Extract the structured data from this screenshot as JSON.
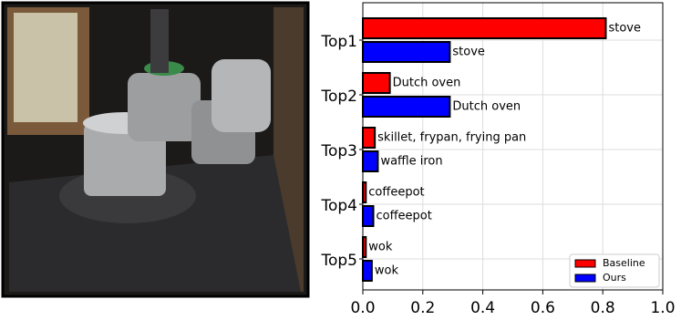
{
  "chart_data": {
    "type": "barh",
    "categories": [
      "Top1",
      "Top2",
      "Top3",
      "Top4",
      "Top5"
    ],
    "series": [
      {
        "name": "Baseline",
        "color": "#ff0000",
        "values": [
          0.81,
          0.09,
          0.04,
          0.01,
          0.01
        ],
        "labels": [
          "stove",
          "Dutch oven",
          "skillet, frypan, frying pan",
          "coffeepot",
          "wok"
        ]
      },
      {
        "name": "Ours",
        "color": "#0000ff",
        "values": [
          0.29,
          0.29,
          0.05,
          0.035,
          0.03
        ],
        "labels": [
          "stove",
          "Dutch oven",
          "waffle iron",
          "coffeepot",
          "wok"
        ]
      }
    ],
    "xlim": [
      0,
      1.0
    ],
    "xticks": [
      {
        "value": 0,
        "label": "0.0"
      },
      0.2,
      0.4,
      0.6,
      0.8,
      {
        "value": 1.0,
        "label": "1.0"
      }
    ],
    "grid": true,
    "legend": "lower right"
  }
}
